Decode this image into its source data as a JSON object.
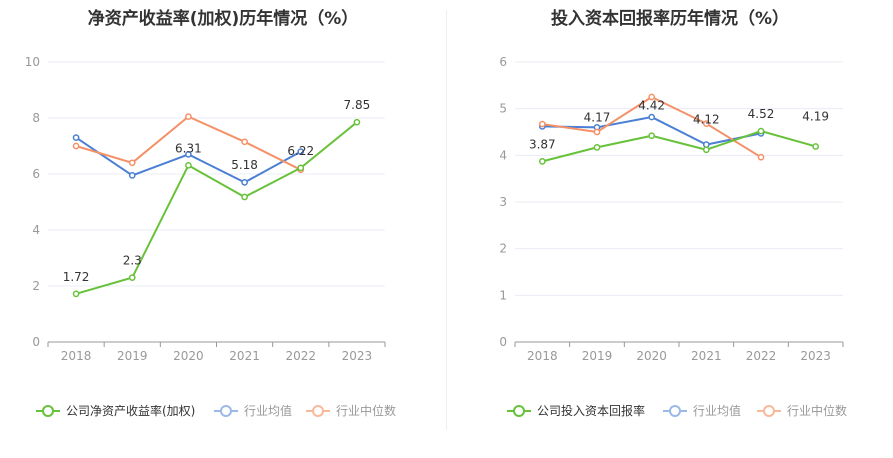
{
  "chart_data": [
    {
      "type": "line",
      "title": "净资产收益率(加权)历年情况（%）",
      "categories": [
        "2018",
        "2019",
        "2020",
        "2021",
        "2022",
        "2023"
      ],
      "ylim": [
        0,
        10
      ],
      "yticks": [
        "0",
        "2",
        "4",
        "6",
        "8",
        "10"
      ],
      "grid": true,
      "legend_position": "bottom",
      "series": [
        {
          "name": "公司净资产收益率(加权)",
          "color": "#67c23a",
          "values": [
            1.72,
            2.3,
            6.31,
            5.18,
            6.22,
            7.85
          ],
          "labels": [
            "1.72",
            "2.3",
            "6.31",
            "5.18",
            "6.22",
            "7.85"
          ]
        },
        {
          "name": "行业均值",
          "color": "#4a7fd4",
          "values": [
            7.3,
            5.95,
            6.7,
            5.7,
            6.8,
            null
          ]
        },
        {
          "name": "行业中位数",
          "color": "#f59168",
          "values": [
            7.0,
            6.4,
            8.05,
            7.15,
            6.15,
            null
          ]
        }
      ]
    },
    {
      "type": "line",
      "title": "投入资本回报率历年情况（%）",
      "categories": [
        "2018",
        "2019",
        "2020",
        "2021",
        "2022",
        "2023"
      ],
      "ylim": [
        0,
        6
      ],
      "yticks": [
        "0",
        "1",
        "2",
        "3",
        "4",
        "5",
        "6"
      ],
      "grid": true,
      "legend_position": "bottom",
      "series": [
        {
          "name": "公司投入资本回报率",
          "color": "#67c23a",
          "values": [
            3.87,
            4.17,
            4.42,
            4.12,
            4.52,
            4.19
          ],
          "labels": [
            "3.87",
            "4.17",
            "4.42",
            "4.12",
            "4.52",
            "4.19"
          ]
        },
        {
          "name": "行业均值",
          "color": "#4a7fd4",
          "values": [
            4.62,
            4.6,
            4.82,
            4.23,
            4.47,
            null
          ]
        },
        {
          "name": "行业中位数",
          "color": "#f59168",
          "values": [
            4.67,
            4.5,
            5.25,
            4.68,
            3.96,
            null
          ]
        }
      ]
    }
  ]
}
